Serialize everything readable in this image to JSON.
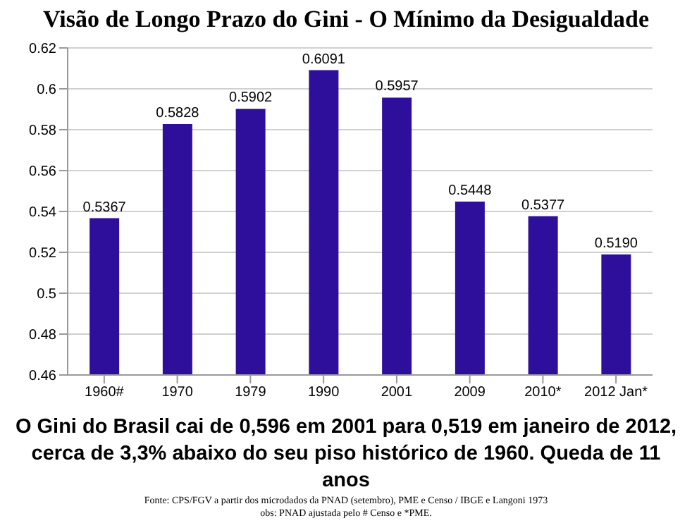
{
  "chart_data": {
    "type": "bar",
    "title": "Visão de Longo Prazo do Gini - O Mínimo da Desigualdade",
    "categories": [
      "1960#",
      "1970",
      "1979",
      "1990",
      "2001",
      "2009",
      "2010*",
      "2012 Jan*"
    ],
    "values": [
      0.5367,
      0.5828,
      0.5902,
      0.6091,
      0.5957,
      0.5448,
      0.5377,
      0.519
    ],
    "value_labels": [
      "0.5367",
      "0.5828",
      "0.5902",
      "0.6091",
      "0.5957",
      "0.5448",
      "0.5377",
      "0.5190"
    ],
    "color": "#2e0f9c",
    "ylim": [
      0.46,
      0.62
    ],
    "yticks": [
      0.46,
      0.48,
      0.5,
      0.52,
      0.54,
      0.56,
      0.58,
      0.6,
      0.62
    ],
    "grid": "y",
    "annotations": [
      "O Gini do Brasil cai de 0,596 em 2001 para 0,519 em janeiro de 2012, cerca de 3,3% abaixo do seu piso histórico de 1960. Queda de 11 anos",
      "Fonte: CPS/FGV a partir dos microdados da PNAD (setembro), PME e Censo / IBGE e Langoni 1973",
      "obs: PNAD ajustada pelo # Censo e *PME."
    ]
  }
}
